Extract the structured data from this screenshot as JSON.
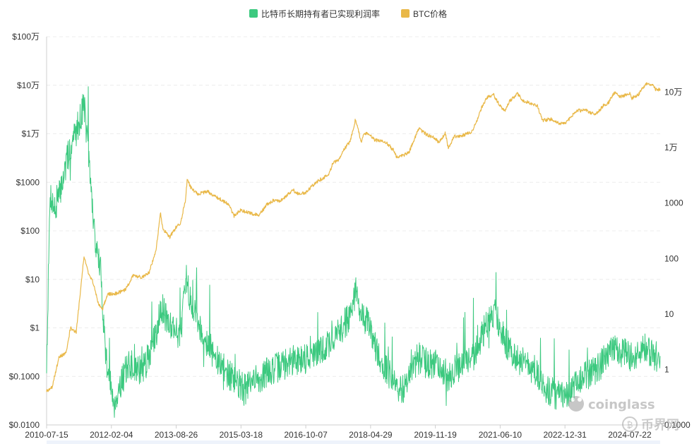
{
  "chart_data": {
    "type": "line",
    "legend_placement": "top-center",
    "grid": true,
    "x_ticks": [
      "2010-07-15",
      "2012-02-04",
      "2013-08-26",
      "2015-03-18",
      "2016-10-07",
      "2018-04-29",
      "2019-11-19",
      "2021-06-10",
      "2022-12-31",
      "2024-07-22"
    ],
    "x_range": [
      "2010-07-15",
      "2025-04-15"
    ],
    "left_axis": {
      "scale": "log",
      "range": [
        0.01,
        1000000
      ],
      "ticks": [
        {
          "v": 0.01,
          "label": "$0.0100"
        },
        {
          "v": 0.1,
          "label": "$0.1000"
        },
        {
          "v": 1,
          "label": "$1"
        },
        {
          "v": 10,
          "label": "$10"
        },
        {
          "v": 100,
          "label": "$100"
        },
        {
          "v": 1000,
          "label": "$1000"
        },
        {
          "v": 10000,
          "label": "$1万"
        },
        {
          "v": 100000,
          "label": "$10万"
        },
        {
          "v": 1000000,
          "label": "$100万"
        }
      ]
    },
    "right_axis": {
      "scale": "log",
      "range": [
        0.1,
        1000000
      ],
      "ticks": [
        {
          "v": 0.1,
          "label": "0.1000"
        },
        {
          "v": 1,
          "label": "1"
        },
        {
          "v": 10,
          "label": "10"
        },
        {
          "v": 100,
          "label": "100"
        },
        {
          "v": 1000,
          "label": "1000"
        },
        {
          "v": 10000,
          "label": "1万"
        },
        {
          "v": 100000,
          "label": "10万"
        }
      ]
    },
    "series": [
      {
        "name": "比特币长期持有者已实现利润率",
        "color": "#3cc97f",
        "axis": "right",
        "points": [
          [
            "2010-07-15",
            1.2
          ],
          [
            "2010-08-15",
            1500
          ],
          [
            "2010-10-01",
            700
          ],
          [
            "2010-12-01",
            2500
          ],
          [
            "2011-02-01",
            9000
          ],
          [
            "2011-04-01",
            20000
          ],
          [
            "2011-06-10",
            60000
          ],
          [
            "2011-08-01",
            3000
          ],
          [
            "2011-09-15",
            200
          ],
          [
            "2011-11-01",
            60
          ],
          [
            "2011-12-15",
            2
          ],
          [
            "2012-01-20",
            0.6
          ],
          [
            "2012-03-01",
            0.25
          ],
          [
            "2012-05-01",
            0.6
          ],
          [
            "2012-07-01",
            1.2
          ],
          [
            "2012-09-01",
            1.1
          ],
          [
            "2012-11-01",
            0.9
          ],
          [
            "2013-01-01",
            1.8
          ],
          [
            "2013-03-01",
            4
          ],
          [
            "2013-04-10",
            15
          ],
          [
            "2013-06-01",
            8
          ],
          [
            "2013-08-01",
            6
          ],
          [
            "2013-10-01",
            4
          ],
          [
            "2013-11-15",
            30
          ],
          [
            "2013-12-15",
            25
          ],
          [
            "2014-02-01",
            12
          ],
          [
            "2014-04-01",
            5
          ],
          [
            "2014-06-01",
            3
          ],
          [
            "2014-08-01",
            1.6
          ],
          [
            "2014-10-01",
            1.1
          ],
          [
            "2015-01-01",
            0.7
          ],
          [
            "2015-03-18",
            0.5
          ],
          [
            "2015-05-01",
            0.45
          ],
          [
            "2015-07-01",
            0.6
          ],
          [
            "2015-09-01",
            0.7
          ],
          [
            "2015-11-01",
            0.9
          ],
          [
            "2016-01-01",
            1
          ],
          [
            "2016-03-01",
            1.2
          ],
          [
            "2016-05-01",
            1.3
          ],
          [
            "2016-07-01",
            1.5
          ],
          [
            "2016-10-07",
            1.6
          ],
          [
            "2017-01-01",
            1.9
          ],
          [
            "2017-03-01",
            2.2
          ],
          [
            "2017-05-01",
            3
          ],
          [
            "2017-07-01",
            4
          ],
          [
            "2017-09-01",
            6
          ],
          [
            "2017-11-01",
            10
          ],
          [
            "2017-12-20",
            25
          ],
          [
            "2018-02-01",
            12
          ],
          [
            "2018-04-29",
            5
          ],
          [
            "2018-07-01",
            2
          ],
          [
            "2018-09-01",
            1.1
          ],
          [
            "2018-11-01",
            0.7
          ],
          [
            "2019-01-01",
            0.4
          ],
          [
            "2019-03-01",
            0.5
          ],
          [
            "2019-05-01",
            0.9
          ],
          [
            "2019-07-01",
            1.6
          ],
          [
            "2019-09-01",
            1.3
          ],
          [
            "2019-11-19",
            1.3
          ],
          [
            "2020-01-01",
            1.2
          ],
          [
            "2020-03-15",
            0.7
          ],
          [
            "2020-05-01",
            1
          ],
          [
            "2020-07-01",
            1.1
          ],
          [
            "2020-09-01",
            1.3
          ],
          [
            "2020-11-01",
            2
          ],
          [
            "2021-01-01",
            4
          ],
          [
            "2021-03-01",
            8
          ],
          [
            "2021-04-15",
            11
          ],
          [
            "2021-06-10",
            6
          ],
          [
            "2021-08-01",
            3
          ],
          [
            "2021-10-01",
            2
          ],
          [
            "2021-12-01",
            1.5
          ],
          [
            "2022-02-01",
            1.2
          ],
          [
            "2022-04-01",
            1
          ],
          [
            "2022-06-01",
            0.6
          ],
          [
            "2022-08-01",
            0.45
          ],
          [
            "2022-10-01",
            0.35
          ],
          [
            "2022-12-31",
            0.3
          ],
          [
            "2023-03-01",
            0.4
          ],
          [
            "2023-05-01",
            0.6
          ],
          [
            "2023-07-01",
            0.8
          ],
          [
            "2023-10-01",
            1
          ],
          [
            "2023-12-01",
            1.4
          ],
          [
            "2024-02-01",
            2
          ],
          [
            "2024-03-15",
            2.6
          ],
          [
            "2024-05-01",
            2.1
          ],
          [
            "2024-07-22",
            1.8
          ],
          [
            "2024-09-01",
            1.6
          ],
          [
            "2024-11-15",
            2.2
          ],
          [
            "2024-12-15",
            2.4
          ],
          [
            "2025-02-01",
            1.9
          ],
          [
            "2025-04-15",
            1.6
          ]
        ]
      },
      {
        "name": "BTC价格",
        "color": "#e9b848",
        "axis": "left",
        "points": [
          [
            "2010-07-15",
            0.05
          ],
          [
            "2010-09-01",
            0.06
          ],
          [
            "2010-11-01",
            0.25
          ],
          [
            "2011-01-01",
            0.3
          ],
          [
            "2011-02-10",
            1
          ],
          [
            "2011-04-01",
            0.8
          ],
          [
            "2011-05-15",
            8
          ],
          [
            "2011-06-08",
            30
          ],
          [
            "2011-07-15",
            14
          ],
          [
            "2011-09-01",
            8
          ],
          [
            "2011-10-15",
            3
          ],
          [
            "2011-11-20",
            2.5
          ],
          [
            "2012-01-01",
            5
          ],
          [
            "2012-03-01",
            5
          ],
          [
            "2012-06-01",
            6
          ],
          [
            "2012-08-15",
            12
          ],
          [
            "2012-11-01",
            11
          ],
          [
            "2013-01-01",
            14
          ],
          [
            "2013-03-01",
            40
          ],
          [
            "2013-04-10",
            230
          ],
          [
            "2013-05-01",
            110
          ],
          [
            "2013-07-01",
            75
          ],
          [
            "2013-08-26",
            120
          ],
          [
            "2013-10-01",
            140
          ],
          [
            "2013-11-15",
            420
          ],
          [
            "2013-12-01",
            1150
          ],
          [
            "2014-01-01",
            780
          ],
          [
            "2014-03-01",
            580
          ],
          [
            "2014-06-01",
            640
          ],
          [
            "2014-09-01",
            470
          ],
          [
            "2014-12-01",
            350
          ],
          [
            "2015-01-15",
            200
          ],
          [
            "2015-03-18",
            270
          ],
          [
            "2015-06-01",
            230
          ],
          [
            "2015-08-25",
            210
          ],
          [
            "2015-11-01",
            350
          ],
          [
            "2016-01-01",
            430
          ],
          [
            "2016-03-01",
            415
          ],
          [
            "2016-06-15",
            700
          ],
          [
            "2016-08-01",
            570
          ],
          [
            "2016-10-07",
            615
          ],
          [
            "2017-01-01",
            990
          ],
          [
            "2017-03-01",
            1200
          ],
          [
            "2017-05-01",
            1500
          ],
          [
            "2017-06-01",
            2500
          ],
          [
            "2017-08-01",
            3000
          ],
          [
            "2017-09-01",
            4500
          ],
          [
            "2017-11-01",
            7000
          ],
          [
            "2017-12-17",
            19500
          ],
          [
            "2018-02-06",
            6900
          ],
          [
            "2018-03-01",
            10500
          ],
          [
            "2018-04-29",
            9400
          ],
          [
            "2018-06-01",
            7500
          ],
          [
            "2018-09-01",
            7000
          ],
          [
            "2018-11-20",
            4500
          ],
          [
            "2018-12-15",
            3300
          ],
          [
            "2019-02-01",
            3500
          ],
          [
            "2019-04-01",
            4100
          ],
          [
            "2019-06-26",
            12800
          ],
          [
            "2019-09-01",
            9700
          ],
          [
            "2019-11-19",
            8100
          ],
          [
            "2019-12-18",
            6600
          ],
          [
            "2020-02-14",
            10300
          ],
          [
            "2020-03-13",
            5000
          ],
          [
            "2020-05-01",
            8800
          ],
          [
            "2020-07-15",
            9200
          ],
          [
            "2020-10-01",
            10800
          ],
          [
            "2020-11-20",
            18500
          ],
          [
            "2021-01-08",
            40000
          ],
          [
            "2021-02-20",
            57000
          ],
          [
            "2021-04-14",
            63000
          ],
          [
            "2021-06-10",
            37000
          ],
          [
            "2021-07-20",
            30000
          ],
          [
            "2021-09-01",
            47000
          ],
          [
            "2021-11-10",
            67000
          ],
          [
            "2022-01-01",
            47000
          ],
          [
            "2022-03-01",
            43000
          ],
          [
            "2022-05-01",
            38000
          ],
          [
            "2022-06-18",
            19000
          ],
          [
            "2022-09-01",
            20000
          ],
          [
            "2022-11-15",
            16500
          ],
          [
            "2022-12-31",
            16500
          ],
          [
            "2023-03-01",
            23000
          ],
          [
            "2023-04-15",
            30000
          ],
          [
            "2023-07-01",
            30500
          ],
          [
            "2023-09-01",
            26000
          ],
          [
            "2023-10-15",
            27000
          ],
          [
            "2023-12-01",
            38000
          ],
          [
            "2024-01-15",
            43000
          ],
          [
            "2024-03-14",
            73000
          ],
          [
            "2024-05-01",
            58000
          ],
          [
            "2024-07-22",
            68000
          ],
          [
            "2024-08-05",
            54000
          ],
          [
            "2024-10-01",
            62000
          ],
          [
            "2024-11-15",
            90000
          ],
          [
            "2024-12-17",
            106000
          ],
          [
            "2025-01-20",
            105000
          ],
          [
            "2025-02-15",
            96000
          ],
          [
            "2025-03-10",
            80000
          ],
          [
            "2025-04-15",
            84000
          ]
        ]
      }
    ]
  },
  "watermarks": [
    {
      "text": "coinglass",
      "icon": "frog-icon"
    },
    {
      "text": "币界网",
      "icon": "coin-icon"
    }
  ]
}
